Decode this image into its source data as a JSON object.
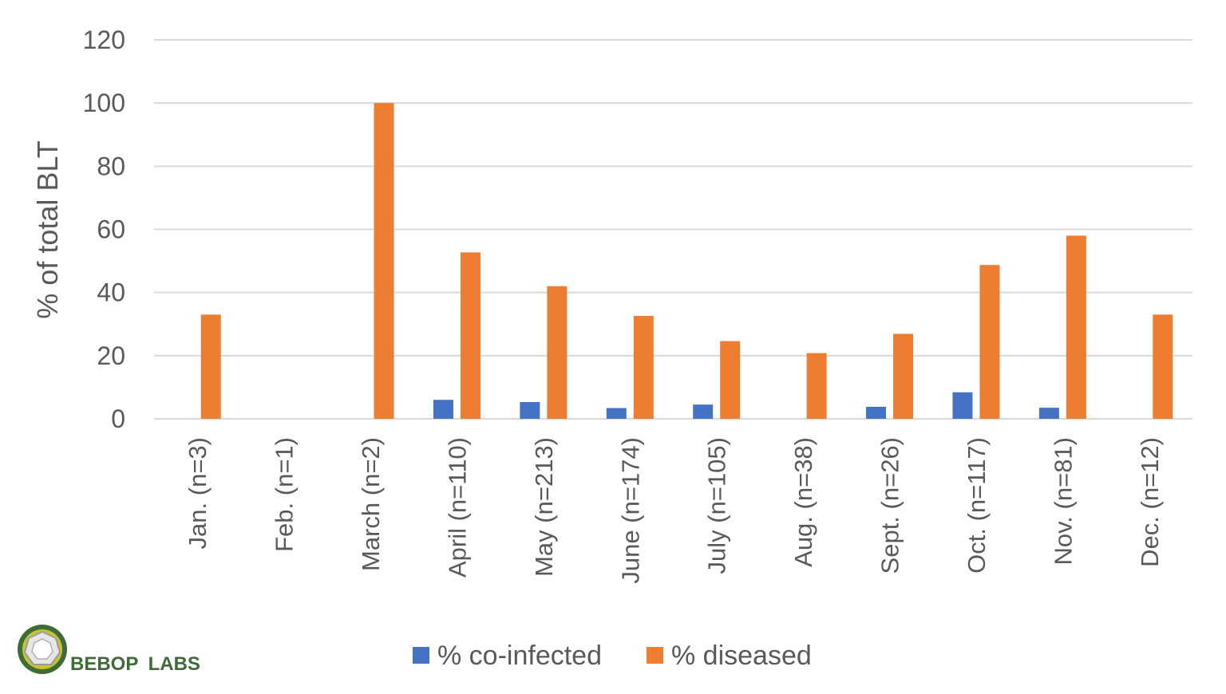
{
  "chart_data": {
    "type": "bar",
    "categories": [
      "Jan. (n=3)",
      "Feb. (n=1)",
      "March (n=2)",
      "April (n=110)",
      "May (n=213)",
      "June (n=174)",
      "July (n=105)",
      "Aug. (n=38)",
      "Sept. (n=26)",
      "Oct. (n=117)",
      "Nov. (n=81)",
      "Dec. (n=12)"
    ],
    "series": [
      {
        "name": "% co-infected",
        "color": "#4472c4",
        "values": [
          0,
          0,
          0,
          6,
          5.3,
          3.4,
          4.5,
          0,
          3.8,
          8.4,
          3.5,
          0
        ]
      },
      {
        "name": "% diseased",
        "color": "#ed7d31",
        "values": [
          33,
          0,
          100,
          52.7,
          42,
          32.6,
          24.6,
          20.8,
          26.9,
          48.7,
          58,
          33
        ]
      }
    ],
    "ylabel": "% of total BLT",
    "xlabel": "",
    "ylim": [
      0,
      120
    ],
    "yticks": [
      0,
      20,
      40,
      60,
      80,
      100,
      120
    ],
    "grid": true,
    "legend_position": "bottom"
  },
  "logo": {
    "name_part1": "BEBOP",
    "name_part2": "LABS",
    "ring_color": "#3f6b37",
    "accent_color": "#c9c235"
  }
}
